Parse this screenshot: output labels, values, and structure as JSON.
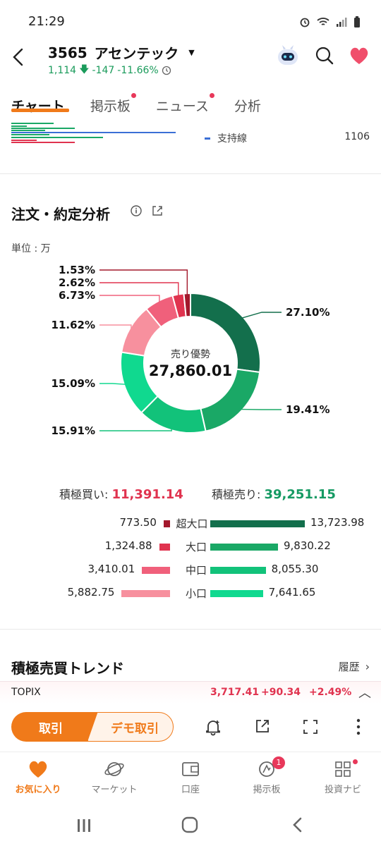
{
  "status": {
    "time": "21:29"
  },
  "header": {
    "code": "3565",
    "name": "アセンテック",
    "price": "1,114",
    "change": "-147",
    "change_pct": "-11.66%"
  },
  "tabs": [
    {
      "label": "チャート",
      "dot": false
    },
    {
      "label": "掲示板",
      "dot": true
    },
    {
      "label": "ニュース",
      "dot": true
    },
    {
      "label": "分析",
      "dot": false
    }
  ],
  "chart_strip": {
    "support_label": "支持線",
    "support_value": "1106"
  },
  "order_analysis": {
    "title": "注文・約定分析",
    "unit": "単位 : 万",
    "center_label": "売り優勢",
    "center_value": "27,860.01",
    "buy_label": "積極買い:",
    "buy_total": "11,391.14",
    "sell_label": "積極売り:",
    "sell_total": "39,251.15",
    "tiers": [
      {
        "label": "超大口",
        "buy": "773.50",
        "sell": "13,723.98"
      },
      {
        "label": "大口",
        "buy": "1,324.88",
        "sell": "9,830.22"
      },
      {
        "label": "中口",
        "buy": "3,410.01",
        "sell": "8,055.30"
      },
      {
        "label": "小口",
        "buy": "5,882.75",
        "sell": "7,641.65"
      }
    ]
  },
  "chart_data": {
    "type": "pie",
    "donut": true,
    "slices": [
      {
        "label": "27.10%",
        "value": 27.1,
        "color": "#136f4c"
      },
      {
        "label": "19.41%",
        "value": 19.41,
        "color": "#1aa866"
      },
      {
        "label": "15.91%",
        "value": 15.91,
        "color": "#12c27a"
      },
      {
        "label": "15.09%",
        "value": 15.09,
        "color": "#10d98f"
      },
      {
        "label": "11.62%",
        "value": 11.62,
        "color": "#f7909e"
      },
      {
        "label": "6.73%",
        "value": 6.73,
        "color": "#f0607b"
      },
      {
        "label": "2.62%",
        "value": 2.62,
        "color": "#e0334f"
      },
      {
        "label": "1.53%",
        "value": 1.53,
        "color": "#a3182c"
      }
    ]
  },
  "trend": {
    "title": "積極売買トレンド",
    "history_label": "履歴"
  },
  "index_bar": {
    "name": "TOPIX",
    "value": "3,717.41",
    "change": "+90.34",
    "change_pct": "+2.49%"
  },
  "actions": {
    "trade_label": "取引",
    "demo_label": "デモ取引"
  },
  "bottom_nav": [
    {
      "label": "お気に入り",
      "icon": "heart-icon",
      "active": true
    },
    {
      "label": "マーケット",
      "icon": "planet-icon",
      "active": false
    },
    {
      "label": "口座",
      "icon": "wallet-icon",
      "active": false
    },
    {
      "label": "掲示板",
      "icon": "board-icon",
      "active": false,
      "badge": "1"
    },
    {
      "label": "投資ナビ",
      "icon": "grid-icon",
      "active": false
    }
  ],
  "colors": {
    "accent": "#f07a1a",
    "down": "#1a9b5b",
    "buy": "#e0334f",
    "sell": "#159a63"
  }
}
